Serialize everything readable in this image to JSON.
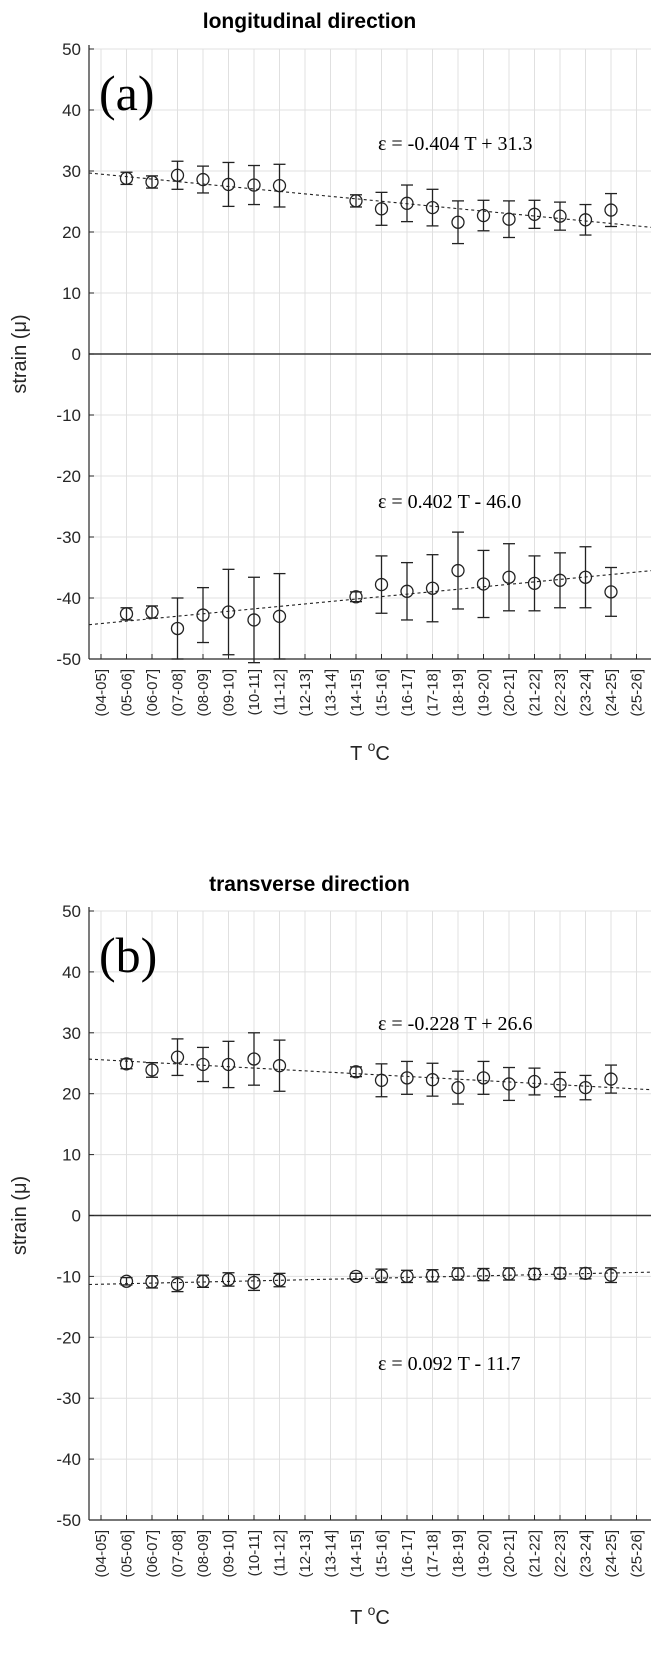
{
  "chart_data": [
    {
      "type": "scatter",
      "title": "longitudinal direction",
      "panel_label": "(a)",
      "xlabel": "T",
      "xlabel_sup": "o",
      "xlabel_unit": "C",
      "ylabel": "strain (μ)",
      "ylim": [
        -50,
        50
      ],
      "yticks": [
        50,
        40,
        30,
        20,
        10,
        0,
        -10,
        -20,
        -30,
        -40,
        -50
      ],
      "grid": true,
      "zero_line": true,
      "categories": [
        "(04-05]",
        "(05-06]",
        "(06-07]",
        "(07-08]",
        "(08-09]",
        "(09-10]",
        "(10-11]",
        "(11-12]",
        "(12-13]",
        "(13-14]",
        "(14-15]",
        "(15-16]",
        "(16-17]",
        "(17-18]",
        "(18-19]",
        "(19-20]",
        "(20-21]",
        "(21-22]",
        "(22-23]",
        "(23-24]",
        "(24-25]",
        "(25-26]"
      ],
      "series": [
        {
          "marker": "open-circle",
          "points": [
            {
              "x": "(05-06]",
              "y": 28.8,
              "err": 1.0
            },
            {
              "x": "(06-07]",
              "y": 28.2,
              "err": 1.0
            },
            {
              "x": "(07-08]",
              "y": 29.3,
              "err": 2.3
            },
            {
              "x": "(08-09]",
              "y": 28.6,
              "err": 2.2
            },
            {
              "x": "(09-10]",
              "y": 27.8,
              "err": 3.6
            },
            {
              "x": "(10-11]",
              "y": 27.7,
              "err": 3.2
            },
            {
              "x": "(11-12]",
              "y": 27.6,
              "err": 3.5
            },
            {
              "x": "(14-15]",
              "y": 25.1,
              "err": 1.0
            },
            {
              "x": "(15-16]",
              "y": 23.8,
              "err": 2.7
            },
            {
              "x": "(16-17]",
              "y": 24.7,
              "err": 3.0
            },
            {
              "x": "(17-18]",
              "y": 24.0,
              "err": 3.0
            },
            {
              "x": "(18-19]",
              "y": 21.6,
              "err": 3.5
            },
            {
              "x": "(19-20]",
              "y": 22.7,
              "err": 2.5
            },
            {
              "x": "(20-21]",
              "y": 22.1,
              "err": 3.0
            },
            {
              "x": "(21-22]",
              "y": 22.9,
              "err": 2.3
            },
            {
              "x": "(22-23]",
              "y": 22.6,
              "err": 2.3
            },
            {
              "x": "(23-24]",
              "y": 22.0,
              "err": 2.5
            },
            {
              "x": "(24-25]",
              "y": 23.6,
              "err": 2.7
            }
          ],
          "fit": {
            "slope": -0.404,
            "intercept": 31.3,
            "label": "ε = -0.404 T + 31.3"
          }
        },
        {
          "marker": "open-circle",
          "points": [
            {
              "x": "(05-06]",
              "y": -42.6,
              "err": 1.0
            },
            {
              "x": "(06-07]",
              "y": -42.3,
              "err": 1.0
            },
            {
              "x": "(07-08]",
              "y": -45.0,
              "err": 5.0
            },
            {
              "x": "(08-09]",
              "y": -42.8,
              "err": 4.5
            },
            {
              "x": "(09-10]",
              "y": -42.3,
              "err": 7.0
            },
            {
              "x": "(10-11]",
              "y": -43.6,
              "err": 7.0
            },
            {
              "x": "(11-12]",
              "y": -43.0,
              "err": 7.0
            },
            {
              "x": "(14-15]",
              "y": -39.8,
              "err": 0.8
            },
            {
              "x": "(15-16]",
              "y": -37.8,
              "err": 4.7
            },
            {
              "x": "(16-17]",
              "y": -38.9,
              "err": 4.7
            },
            {
              "x": "(17-18]",
              "y": -38.4,
              "err": 5.5
            },
            {
              "x": "(18-19]",
              "y": -35.5,
              "err": 6.3
            },
            {
              "x": "(19-20]",
              "y": -37.7,
              "err": 5.5
            },
            {
              "x": "(20-21]",
              "y": -36.6,
              "err": 5.5
            },
            {
              "x": "(21-22]",
              "y": -37.6,
              "err": 4.5
            },
            {
              "x": "(22-23]",
              "y": -37.1,
              "err": 4.5
            },
            {
              "x": "(23-24]",
              "y": -36.6,
              "err": 5.0
            },
            {
              "x": "(24-25]",
              "y": -39.0,
              "err": 4.0
            }
          ],
          "fit": {
            "slope": 0.402,
            "intercept": -46.0,
            "label": "ε =  0.402 T - 46.0"
          }
        }
      ]
    },
    {
      "type": "scatter",
      "title": "transverse direction",
      "panel_label": "(b)",
      "xlabel": "T",
      "xlabel_sup": "o",
      "xlabel_unit": "C",
      "ylabel": "strain (μ)",
      "ylim": [
        -50,
        50
      ],
      "yticks": [
        50,
        40,
        30,
        20,
        10,
        0,
        -10,
        -20,
        -30,
        -40,
        -50
      ],
      "grid": true,
      "zero_line": true,
      "categories": [
        "(04-05]",
        "(05-06]",
        "(06-07]",
        "(07-08]",
        "(08-09]",
        "(09-10]",
        "(10-11]",
        "(11-12]",
        "(12-13]",
        "(13-14]",
        "(14-15]",
        "(15-16]",
        "(16-17]",
        "(17-18]",
        "(18-19]",
        "(19-20]",
        "(20-21]",
        "(21-22]",
        "(22-23]",
        "(23-24]",
        "(24-25]",
        "(25-26]"
      ],
      "series": [
        {
          "marker": "open-circle",
          "points": [
            {
              "x": "(05-06]",
              "y": 24.9,
              "err": 0.8
            },
            {
              "x": "(06-07]",
              "y": 23.9,
              "err": 1.2
            },
            {
              "x": "(07-08]",
              "y": 26.0,
              "err": 3.0
            },
            {
              "x": "(08-09]",
              "y": 24.8,
              "err": 2.8
            },
            {
              "x": "(09-10]",
              "y": 24.8,
              "err": 3.8
            },
            {
              "x": "(10-11]",
              "y": 25.7,
              "err": 4.3
            },
            {
              "x": "(11-12]",
              "y": 24.6,
              "err": 4.2
            },
            {
              "x": "(14-15]",
              "y": 23.6,
              "err": 0.8
            },
            {
              "x": "(15-16]",
              "y": 22.2,
              "err": 2.7
            },
            {
              "x": "(16-17]",
              "y": 22.6,
              "err": 2.7
            },
            {
              "x": "(17-18]",
              "y": 22.3,
              "err": 2.7
            },
            {
              "x": "(18-19]",
              "y": 21.0,
              "err": 2.7
            },
            {
              "x": "(19-20]",
              "y": 22.6,
              "err": 2.7
            },
            {
              "x": "(20-21]",
              "y": 21.6,
              "err": 2.7
            },
            {
              "x": "(21-22]",
              "y": 22.0,
              "err": 2.2
            },
            {
              "x": "(22-23]",
              "y": 21.5,
              "err": 2.0
            },
            {
              "x": "(23-24]",
              "y": 21.0,
              "err": 2.0
            },
            {
              "x": "(24-25]",
              "y": 22.4,
              "err": 2.3
            }
          ],
          "fit": {
            "slope": -0.228,
            "intercept": 26.6,
            "label": "ε = -0.228 T + 26.6"
          }
        },
        {
          "marker": "open-circle",
          "points": [
            {
              "x": "(05-06]",
              "y": -10.8,
              "err": 0.6
            },
            {
              "x": "(06-07]",
              "y": -10.9,
              "err": 1.0
            },
            {
              "x": "(07-08]",
              "y": -11.3,
              "err": 1.2
            },
            {
              "x": "(08-09]",
              "y": -10.8,
              "err": 1.0
            },
            {
              "x": "(09-10]",
              "y": -10.5,
              "err": 1.1
            },
            {
              "x": "(10-11]",
              "y": -11.0,
              "err": 1.3
            },
            {
              "x": "(11-12]",
              "y": -10.6,
              "err": 1.1
            },
            {
              "x": "(14-15]",
              "y": -10.0,
              "err": 0.5
            },
            {
              "x": "(15-16]",
              "y": -9.9,
              "err": 1.1
            },
            {
              "x": "(16-17]",
              "y": -10.0,
              "err": 1.0
            },
            {
              "x": "(17-18]",
              "y": -9.9,
              "err": 1.0
            },
            {
              "x": "(18-19]",
              "y": -9.6,
              "err": 1.0
            },
            {
              "x": "(19-20]",
              "y": -9.7,
              "err": 1.0
            },
            {
              "x": "(20-21]",
              "y": -9.6,
              "err": 1.0
            },
            {
              "x": "(21-22]",
              "y": -9.6,
              "err": 0.9
            },
            {
              "x": "(22-23]",
              "y": -9.5,
              "err": 0.9
            },
            {
              "x": "(23-24]",
              "y": -9.5,
              "err": 0.9
            },
            {
              "x": "(24-25]",
              "y": -9.8,
              "err": 1.2
            }
          ],
          "fit": {
            "slope": 0.092,
            "intercept": -11.7,
            "label": "ε =  0.092 T - 11.7"
          }
        }
      ]
    }
  ]
}
